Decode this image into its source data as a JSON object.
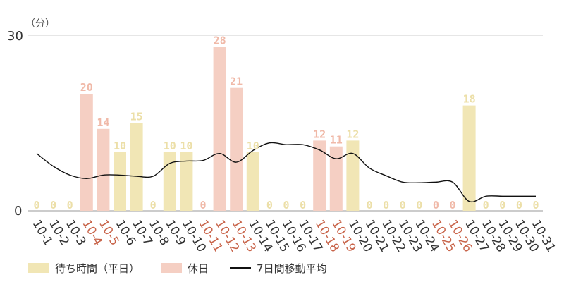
{
  "chart_data": {
    "type": "bar",
    "unit_label": "（分）",
    "y_ticks": [
      "30",
      "0"
    ],
    "ylim": [
      0,
      30
    ],
    "categories": [
      "10-1",
      "10-2",
      "10-3",
      "10-4",
      "10-5",
      "10-6",
      "10-7",
      "10-8",
      "10-9",
      "10-10",
      "10-11",
      "10-12",
      "10-13",
      "10-14",
      "10-15",
      "10-16",
      "10-17",
      "10-18",
      "10-19",
      "10-20",
      "10-21",
      "10-22",
      "10-23",
      "10-24",
      "10-25",
      "10-26",
      "10-27",
      "10-28",
      "10-29",
      "10-30",
      "10-31"
    ],
    "holiday": [
      false,
      false,
      false,
      true,
      true,
      false,
      false,
      false,
      false,
      false,
      true,
      true,
      true,
      false,
      false,
      false,
      false,
      true,
      true,
      false,
      false,
      false,
      false,
      false,
      true,
      true,
      false,
      false,
      false,
      false,
      false
    ],
    "values": [
      0,
      0,
      0,
      20,
      14,
      10,
      15,
      0,
      10,
      10,
      0,
      28,
      21,
      10,
      0,
      0,
      0,
      12,
      11,
      12,
      0,
      0,
      0,
      0,
      0,
      0,
      18,
      0,
      0,
      0,
      0
    ],
    "moving_average": [
      9.8,
      7.6,
      6.1,
      5.5,
      6.1,
      6.1,
      5.9,
      5.9,
      8.1,
      8.5,
      8.6,
      9.8,
      8.3,
      10.3,
      11.6,
      11.3,
      11.3,
      10.4,
      8.9,
      9.8,
      7.3,
      6.0,
      4.9,
      4.8,
      4.9,
      4.9,
      1.6,
      2.5,
      2.5,
      2.5,
      2.5
    ],
    "series": [
      {
        "name": "待ち時間（平日）",
        "color": "#f1e6b5"
      },
      {
        "name": "休日",
        "color": "#f5cfc3"
      },
      {
        "name": "7日間移動平均",
        "color": "#111111"
      }
    ],
    "colors": {
      "weekday_bar": "#f1e6b5",
      "holiday_bar": "#f5cfc3",
      "weekday_label": "#ecdfa8",
      "holiday_label": "#f0b9a8",
      "weekday_tick": "#333333",
      "holiday_tick": "#c8644a",
      "line": "#111111",
      "grid": "#cccccc"
    },
    "legend_placement": "bottom-left"
  }
}
